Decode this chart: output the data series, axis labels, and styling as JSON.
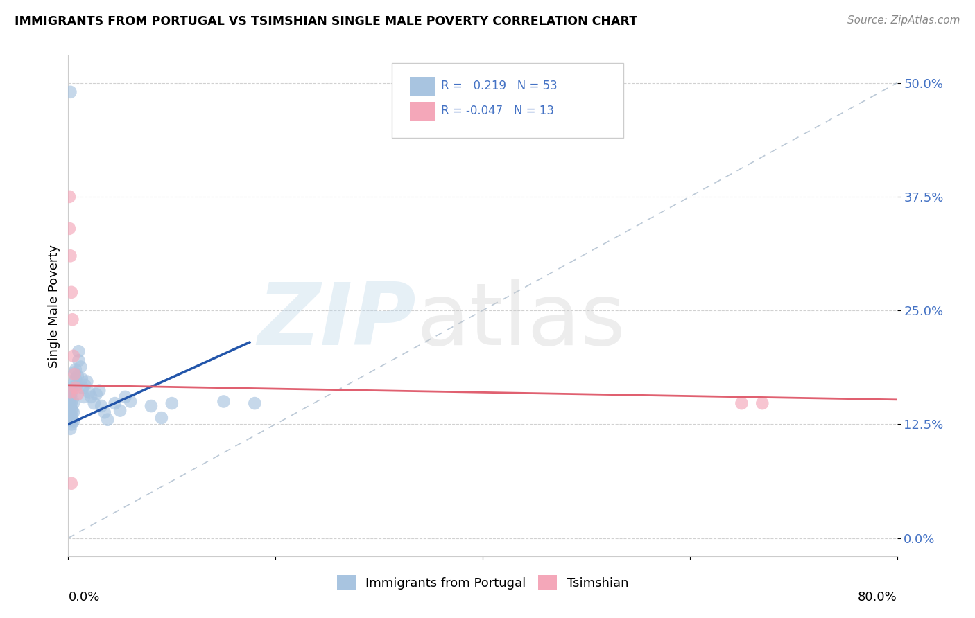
{
  "title": "IMMIGRANTS FROM PORTUGAL VS TSIMSHIAN SINGLE MALE POVERTY CORRELATION CHART",
  "source": "Source: ZipAtlas.com",
  "ylabel": "Single Male Poverty",
  "ytick_vals": [
    0.0,
    0.125,
    0.25,
    0.375,
    0.5
  ],
  "ytick_labels": [
    "0.0%",
    "12.5%",
    "25.0%",
    "37.5%",
    "50.0%"
  ],
  "xmin": 0.0,
  "xmax": 0.8,
  "ymin": -0.02,
  "ymax": 0.53,
  "r_blue": 0.219,
  "n_blue": 53,
  "r_pink": -0.047,
  "n_pink": 13,
  "blue_color": "#a8c4e0",
  "pink_color": "#f4a7b9",
  "blue_line_color": "#2255aa",
  "pink_line_color": "#e06070",
  "text_color": "#4472c4",
  "legend_label_blue": "Immigrants from Portugal",
  "legend_label_pink": "Tsimshian",
  "blue_line_x": [
    0.0,
    0.175
  ],
  "blue_line_y": [
    0.125,
    0.215
  ],
  "pink_line_x": [
    0.0,
    0.8
  ],
  "pink_line_y": [
    0.168,
    0.152
  ],
  "dash_line_x": [
    0.0,
    0.8
  ],
  "dash_line_y": [
    0.0,
    0.5
  ],
  "blue_scatter_x": [
    0.001,
    0.001,
    0.001,
    0.001,
    0.002,
    0.002,
    0.002,
    0.002,
    0.002,
    0.003,
    0.003,
    0.003,
    0.003,
    0.003,
    0.004,
    0.004,
    0.004,
    0.004,
    0.005,
    0.005,
    0.005,
    0.006,
    0.006,
    0.007,
    0.007,
    0.008,
    0.009,
    0.01,
    0.01,
    0.012,
    0.013,
    0.014,
    0.015,
    0.016,
    0.018,
    0.02,
    0.022,
    0.025,
    0.027,
    0.03,
    0.032,
    0.035,
    0.038,
    0.045,
    0.05,
    0.055,
    0.06,
    0.08,
    0.09,
    0.1,
    0.15,
    0.18,
    0.002
  ],
  "blue_scatter_y": [
    0.14,
    0.15,
    0.13,
    0.16,
    0.135,
    0.145,
    0.155,
    0.12,
    0.165,
    0.125,
    0.135,
    0.148,
    0.158,
    0.142,
    0.13,
    0.14,
    0.152,
    0.162,
    0.128,
    0.138,
    0.148,
    0.172,
    0.182,
    0.175,
    0.185,
    0.168,
    0.178,
    0.195,
    0.205,
    0.188,
    0.175,
    0.165,
    0.155,
    0.168,
    0.172,
    0.16,
    0.155,
    0.148,
    0.158,
    0.162,
    0.145,
    0.138,
    0.13,
    0.148,
    0.14,
    0.155,
    0.15,
    0.145,
    0.132,
    0.148,
    0.15,
    0.148,
    0.49
  ],
  "pink_scatter_x": [
    0.001,
    0.001,
    0.002,
    0.003,
    0.004,
    0.005,
    0.006,
    0.007,
    0.009,
    0.65,
    0.67,
    0.002,
    0.003
  ],
  "pink_scatter_y": [
    0.375,
    0.34,
    0.31,
    0.27,
    0.24,
    0.2,
    0.18,
    0.165,
    0.158,
    0.148,
    0.148,
    0.16,
    0.06
  ]
}
